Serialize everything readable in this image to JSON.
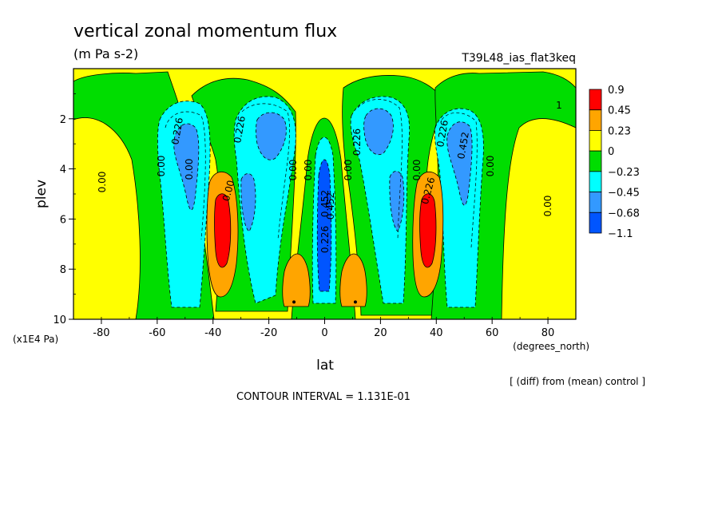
{
  "chart_data": {
    "type": "heatmap",
    "title": "vertical zonal momentum flux",
    "units": "(m Pa s-2)",
    "run_label": "T39L48_ias_flat3keq",
    "xlabel": "lat",
    "xunits": "(degrees_north)",
    "ylabel": "plev",
    "yunits": "(x1E4 Pa)",
    "xlim": [
      -90,
      90
    ],
    "ylim": [
      0,
      10
    ],
    "y_inverted": true,
    "xticks": [
      -80,
      -60,
      -40,
      -20,
      0,
      20,
      40,
      60,
      80
    ],
    "xtick_labels": [
      "-80",
      "-60",
      "-40",
      "-20",
      "0",
      "20",
      "40",
      "60",
      "80"
    ],
    "yticks": [
      2,
      4,
      6,
      8,
      10
    ],
    "ytick_labels": [
      "2",
      "4",
      "6",
      "8",
      "10"
    ],
    "colorbar": {
      "labels": [
        "0.9",
        "0.45",
        "0.23",
        "0",
        "−0.23",
        "−0.45",
        "−0.68",
        "−1.1"
      ],
      "colors": [
        "#ff0000",
        "#ffa500",
        "#ffff00",
        "#00dd00",
        "#00ffff",
        "#3399ff",
        "#0055ff"
      ]
    },
    "contour_labels": [
      "0.00",
      "0.00",
      "0.226",
      "0.00",
      "0.226",
      "0.00",
      "0.00",
      "0.452",
      "0.226",
      "0.00",
      "0.226",
      "0.00",
      "0.226",
      "0.452",
      "0.00",
      "0.00",
      "0.00",
      "0.226",
      "0.452",
      "1"
    ],
    "features": [
      {
        "kind": "positive_max",
        "lat": -37,
        "plev": 6.3,
        "level": 0.9
      },
      {
        "kind": "positive_max",
        "lat": 37,
        "plev": 6.3,
        "level": 0.9
      },
      {
        "kind": "positive_max",
        "lat": -11,
        "plev": 8.8,
        "level": 0.45
      },
      {
        "kind": "positive_max",
        "lat": 11,
        "plev": 8.8,
        "level": 0.45
      },
      {
        "kind": "negative_min",
        "lat": 0,
        "plev": 7.0,
        "level": -0.68
      },
      {
        "kind": "negative_min",
        "lat": -47,
        "plev": 3.5,
        "level": -0.68
      },
      {
        "kind": "negative_min",
        "lat": 47,
        "plev": 3.5,
        "level": -0.68
      },
      {
        "kind": "negative_min",
        "lat": -20,
        "plev": 3.0,
        "level": -0.68
      },
      {
        "kind": "negative_min",
        "lat": 20,
        "plev": 3.0,
        "level": -0.68
      }
    ]
  },
  "footer": {
    "diff_note": "[ (diff) from (mean) control ]",
    "contour_interval": "CONTOUR INTERVAL = 1.131E-01"
  }
}
